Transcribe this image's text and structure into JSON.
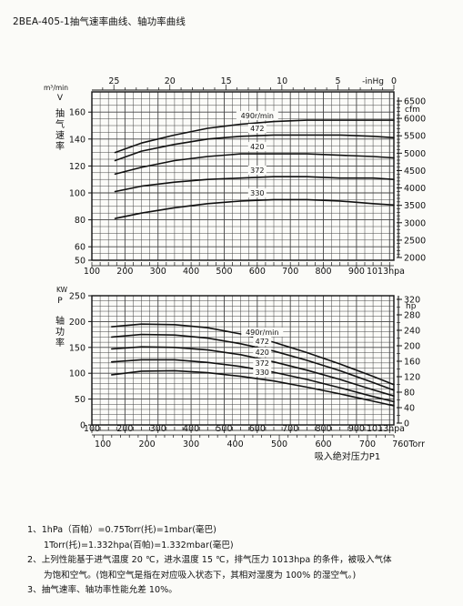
{
  "page_title": "2BEA-405-1抽气速率曲线、轴功率曲线",
  "chart_data": [
    {
      "type": "line",
      "name_label": "抽气速率",
      "y_unit_label": "m³/min",
      "y_symbol": "V",
      "y_label_chars": [
        "抽",
        "气",
        "速",
        "率"
      ],
      "y_ticks": [
        50,
        60,
        80,
        100,
        120,
        140,
        160
      ],
      "ylim": [
        50,
        175
      ],
      "right_unit_label": "cfm",
      "right_ticks": [
        2000,
        2500,
        3000,
        3500,
        4000,
        4500,
        5000,
        5500,
        6000,
        6500
      ],
      "x_ticks": [
        100,
        200,
        300,
        400,
        500,
        600,
        700,
        800,
        900
      ],
      "x_tick_last_label": "1013hpa",
      "x_range": [
        100,
        1013
      ],
      "top_unit_label": "-inHg",
      "top_ticks": [
        25,
        20,
        15,
        10,
        5,
        0
      ],
      "top_tick_values_hpa": [
        167,
        336,
        506,
        675,
        844,
        1013
      ],
      "series": [
        {
          "name": "490r/min",
          "x": [
            170,
            250,
            350,
            450,
            550,
            650,
            750,
            850,
            950,
            1013
          ],
          "values": [
            130,
            137,
            143,
            148,
            151,
            153,
            154,
            154,
            154,
            154
          ]
        },
        {
          "name": "472",
          "x": [
            170,
            250,
            350,
            450,
            550,
            650,
            750,
            850,
            950,
            1013
          ],
          "values": [
            124,
            131,
            136,
            140,
            142,
            143,
            143,
            143,
            142,
            141
          ]
        },
        {
          "name": "420",
          "x": [
            170,
            250,
            350,
            450,
            550,
            650,
            750,
            850,
            950,
            1013
          ],
          "values": [
            114,
            119,
            124,
            127,
            129,
            129,
            129,
            128,
            127,
            126
          ]
        },
        {
          "name": "372",
          "x": [
            170,
            250,
            350,
            450,
            550,
            650,
            750,
            850,
            950,
            1013
          ],
          "values": [
            101,
            105,
            108,
            110,
            111,
            112,
            112,
            111,
            111,
            110
          ]
        },
        {
          "name": "330",
          "x": [
            170,
            250,
            350,
            450,
            550,
            650,
            750,
            850,
            950,
            1013
          ],
          "values": [
            81,
            85,
            89,
            92,
            94,
            95,
            95,
            94,
            92,
            91
          ]
        }
      ]
    },
    {
      "type": "line",
      "name_label": "轴功率",
      "y_unit_label": "KW",
      "y_symbol": "P",
      "y_label_chars": [
        "轴",
        "功",
        "率"
      ],
      "y_ticks": [
        0,
        50,
        100,
        150,
        200,
        250
      ],
      "ylim": [
        0,
        250
      ],
      "right_unit_label": "hp",
      "right_ticks": [
        0,
        40,
        80,
        120,
        160,
        200,
        240,
        280,
        320
      ],
      "x_ticks": [
        100,
        200,
        300,
        400,
        500,
        600,
        700,
        800,
        900
      ],
      "x_tick_last_label": "1013hpa",
      "x_range": [
        100,
        1013
      ],
      "torr_ticks": [
        100,
        200,
        300,
        400,
        500,
        600,
        700
      ],
      "torr_last_label": "760Torr",
      "x_title": "吸入绝对压力P1",
      "series": [
        {
          "name": "490r/min",
          "x": [
            160,
            250,
            350,
            450,
            550,
            650,
            750,
            850,
            950,
            1013
          ],
          "values": [
            190,
            195,
            194,
            188,
            176,
            160,
            140,
            118,
            94,
            78
          ]
        },
        {
          "name": "472",
          "x": [
            160,
            250,
            350,
            450,
            550,
            650,
            750,
            850,
            950,
            1013
          ],
          "values": [
            170,
            175,
            174,
            168,
            157,
            143,
            125,
            105,
            82,
            67
          ]
        },
        {
          "name": "420",
          "x": [
            160,
            250,
            350,
            450,
            550,
            650,
            750,
            850,
            950,
            1013
          ],
          "values": [
            147,
            151,
            150,
            145,
            136,
            122,
            106,
            88,
            68,
            56
          ]
        },
        {
          "name": "372",
          "x": [
            160,
            250,
            350,
            450,
            550,
            650,
            750,
            850,
            950,
            1013
          ],
          "values": [
            122,
            126,
            126,
            121,
            113,
            102,
            88,
            72,
            55,
            45
          ]
        },
        {
          "name": "330",
          "x": [
            160,
            250,
            350,
            450,
            550,
            650,
            750,
            850,
            950,
            1013
          ],
          "values": [
            97,
            104,
            105,
            101,
            94,
            85,
            73,
            60,
            46,
            37
          ]
        }
      ]
    }
  ],
  "notes": {
    "n1": "1、1hPa（百帕）=0.75Torr(托)=1mbar(毫巴)",
    "n1b": "1Torr(托)=1.332hpa(百帕)=1.332mbar(毫巴)",
    "n2": "2、上列性能基于进气温度 20 ℃，进水温度 15 ℃，排气压力 1013hpa 的条件，被吸入气体",
    "n2b": "为饱和空气。(饱和空气是指在对应吸入状态下，其相对湿度为 100% 的湿空气。)",
    "n3": "3、抽气速率、轴功率性能允差 10%。"
  }
}
